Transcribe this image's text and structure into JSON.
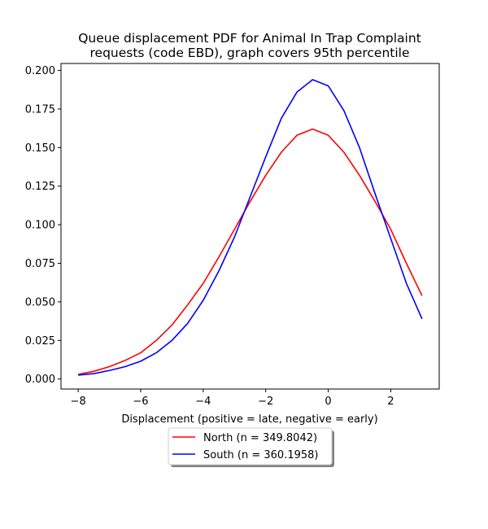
{
  "chart_data": {
    "type": "line",
    "title_lines": [
      "Queue displacement PDF for Animal In Trap Complaint",
      "requests (code EBD), graph covers 95th percentile"
    ],
    "xlabel": "Displacement (positive = late, negative = early)",
    "ylabel": "",
    "xlim": [
      -8.55,
      3.55
    ],
    "ylim": [
      -0.0065,
      0.2045
    ],
    "x_ticks": [
      -8,
      -6,
      -4,
      -2,
      0,
      2
    ],
    "x_tick_labels": [
      "−8",
      "−6",
      "−4",
      "−2",
      "0",
      "2"
    ],
    "y_ticks": [
      0.0,
      0.025,
      0.05,
      0.075,
      0.1,
      0.125,
      0.15,
      0.175,
      0.2
    ],
    "y_tick_labels": [
      "0.000",
      "0.025",
      "0.050",
      "0.075",
      "0.100",
      "0.125",
      "0.150",
      "0.175",
      "0.200"
    ],
    "grid": false,
    "legend_placement": "below plot, centered",
    "x": [
      -8.0,
      -7.5,
      -7.0,
      -6.5,
      -6.0,
      -5.5,
      -5.0,
      -4.5,
      -4.0,
      -3.5,
      -3.0,
      -2.5,
      -2.0,
      -1.5,
      -1.0,
      -0.5,
      0.0,
      0.5,
      1.0,
      1.5,
      2.0,
      2.5,
      3.0
    ],
    "series": [
      {
        "name": "North (n = 349.8042)",
        "color": "#ff0000",
        "values": [
          0.003,
          0.005,
          0.008,
          0.012,
          0.017,
          0.025,
          0.035,
          0.048,
          0.062,
          0.079,
          0.097,
          0.115,
          0.132,
          0.147,
          0.158,
          0.162,
          0.158,
          0.147,
          0.132,
          0.115,
          0.097,
          0.075,
          0.054
        ]
      },
      {
        "name": "South (n = 360.1958)",
        "color": "#0000ff",
        "values": [
          0.0025,
          0.0035,
          0.0055,
          0.008,
          0.0115,
          0.017,
          0.025,
          0.036,
          0.051,
          0.07,
          0.092,
          0.118,
          0.144,
          0.169,
          0.186,
          0.194,
          0.19,
          0.174,
          0.15,
          0.12,
          0.091,
          0.062,
          0.039
        ]
      }
    ]
  }
}
